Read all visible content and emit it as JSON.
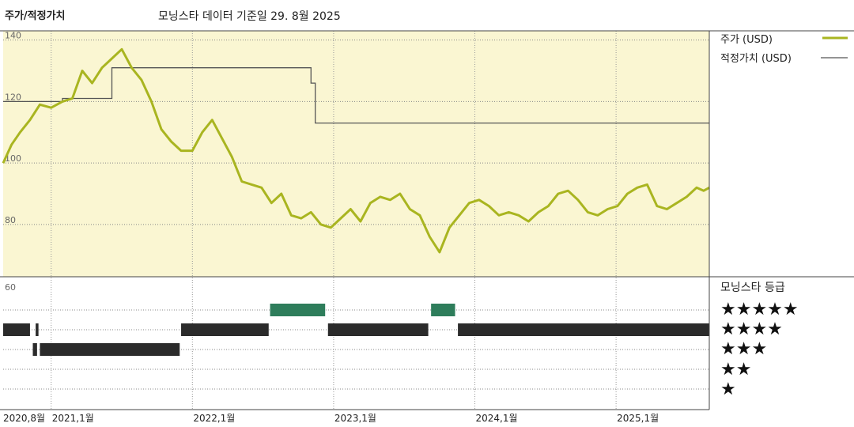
{
  "header": {
    "left_title": "주가/적정가치",
    "subtitle": "모닝스타 데이터 기준일 29. 8월 2025"
  },
  "legend": {
    "price_label": "주가 (USD)",
    "fair_value_label": "적정가치 (USD)",
    "rating_title": "모닝스타 등급",
    "stars": [
      "★★★★★",
      "★★★★",
      "★★★",
      "★★",
      "★"
    ]
  },
  "colors": {
    "price": "#a9b520",
    "fair_value": "#555555",
    "chart_bg": "#faf6d2",
    "rating_dark": "#2b2b2b",
    "rating_green": "#2e7d5b"
  },
  "chart_data": {
    "type": "line",
    "y_ticks": [
      "140",
      "120",
      "100",
      "80",
      "60"
    ],
    "x_ticks": [
      "2020,8월",
      "2021,1월",
      "2022,1월",
      "2023,1월",
      "2024,1월",
      "2025,1월"
    ],
    "ylim": [
      60,
      143
    ],
    "series": [
      {
        "name": "주가 (USD)",
        "x": [
          2020.66,
          2020.72,
          2020.78,
          2020.85,
          2020.92,
          2021.0,
          2021.08,
          2021.15,
          2021.22,
          2021.29,
          2021.36,
          2021.43,
          2021.5,
          2021.57,
          2021.64,
          2021.71,
          2021.78,
          2021.85,
          2021.92,
          2022.0,
          2022.07,
          2022.14,
          2022.21,
          2022.28,
          2022.35,
          2022.42,
          2022.49,
          2022.56,
          2022.63,
          2022.7,
          2022.77,
          2022.84,
          2022.91,
          2022.98,
          2023.05,
          2023.12,
          2023.19,
          2023.26,
          2023.33,
          2023.4,
          2023.47,
          2023.54,
          2023.61,
          2023.68,
          2023.75,
          2023.82,
          2023.89,
          2023.96,
          2024.03,
          2024.1,
          2024.17,
          2024.24,
          2024.31,
          2024.38,
          2024.45,
          2024.52,
          2024.59,
          2024.66,
          2024.73,
          2024.8,
          2024.87,
          2024.94,
          2025.01,
          2025.08,
          2025.15,
          2025.22,
          2025.29,
          2025.36,
          2025.43,
          2025.5,
          2025.57,
          2025.62,
          2025.66
        ],
        "values": [
          100,
          106,
          110,
          114,
          119,
          118,
          120,
          121,
          130,
          126,
          131,
          134,
          137,
          131,
          127,
          120,
          111,
          107,
          104,
          104,
          110,
          114,
          108,
          102,
          94,
          93,
          92,
          87,
          90,
          83,
          82,
          84,
          80,
          79,
          82,
          85,
          81,
          87,
          89,
          88,
          90,
          85,
          83,
          76,
          71,
          79,
          83,
          87,
          88,
          86,
          83,
          84,
          83,
          81,
          84,
          86,
          90,
          91,
          88,
          84,
          83,
          85,
          86,
          90,
          92,
          93,
          86,
          85,
          87,
          89,
          92,
          91,
          92
        ]
      },
      {
        "name": "적정가치 (USD)",
        "x": [
          2020.66,
          2021.08,
          2021.08,
          2021.43,
          2021.43,
          2022.84,
          2022.84,
          2022.87,
          2022.87,
          2025.66
        ],
        "values": [
          120,
          120,
          121,
          121,
          131,
          131,
          126,
          126,
          113,
          113
        ]
      }
    ],
    "ratings": [
      {
        "stars": 4,
        "from": 2020.66,
        "to": 2020.85
      },
      {
        "stars": 4,
        "from": 2020.89,
        "to": 2020.91
      },
      {
        "stars": 3,
        "from": 2020.87,
        "to": 2020.9
      },
      {
        "stars": 3,
        "from": 2020.92,
        "to": 2021.91
      },
      {
        "stars": 4,
        "from": 2021.92,
        "to": 2022.54
      },
      {
        "stars": 5,
        "from": 2022.55,
        "to": 2022.94
      },
      {
        "stars": 4,
        "from": 2022.96,
        "to": 2023.67
      },
      {
        "stars": 5,
        "from": 2023.69,
        "to": 2023.86
      },
      {
        "stars": 4,
        "from": 2023.88,
        "to": 2025.66
      }
    ],
    "grid": true,
    "legend_position": "right"
  }
}
